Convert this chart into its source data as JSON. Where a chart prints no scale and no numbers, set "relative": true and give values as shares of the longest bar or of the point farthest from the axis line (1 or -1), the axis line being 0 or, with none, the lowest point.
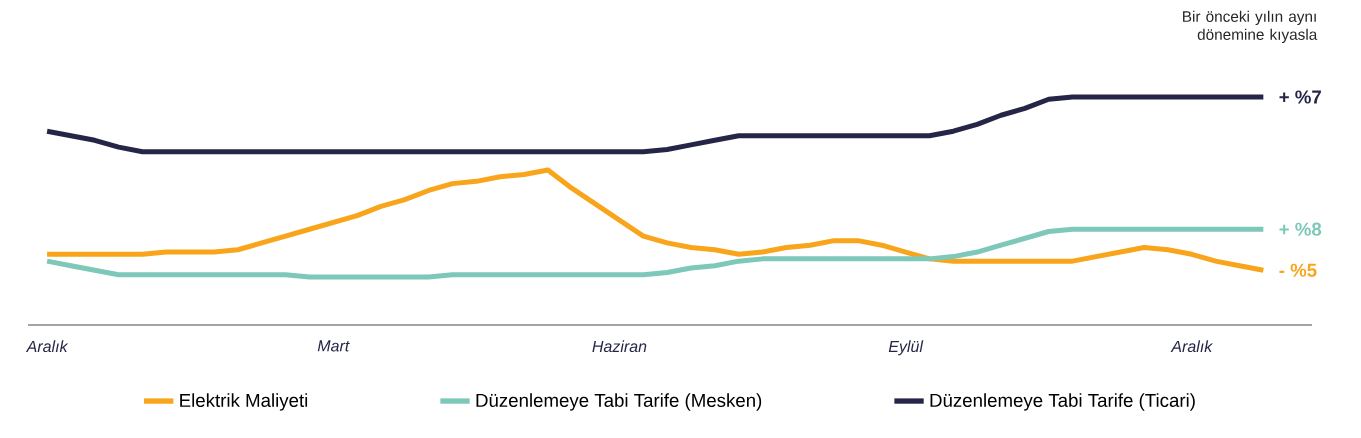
{
  "chart_data": {
    "type": "line",
    "title": "Bir önceki yılın aynı dönemine kıyasla",
    "relative": true,
    "legend": "bottom",
    "categories": [
      "Aralık",
      null,
      null,
      null,
      null,
      null,
      null,
      null,
      null,
      null,
      null,
      null,
      "Mart",
      null,
      null,
      null,
      null,
      null,
      null,
      null,
      null,
      null,
      null,
      null,
      "Haziran",
      null,
      null,
      null,
      null,
      null,
      null,
      null,
      null,
      null,
      null,
      null,
      "Eylül",
      null,
      null,
      null,
      null,
      null,
      null,
      null,
      null,
      null,
      null,
      null,
      "Aralık",
      null,
      null,
      null
    ],
    "series": [
      {
        "name": "Elektrik Maliyeti",
        "color": "#f9a51b",
        "values": [
          0.31,
          0.31,
          0.31,
          0.31,
          0.31,
          0.32,
          0.32,
          0.32,
          0.33,
          0.36,
          0.39,
          0.42,
          0.45,
          0.48,
          0.52,
          0.55,
          0.59,
          0.62,
          0.63,
          0.65,
          0.66,
          0.68,
          0.6,
          0.53,
          0.46,
          0.39,
          0.36,
          0.34,
          0.33,
          0.31,
          0.32,
          0.34,
          0.35,
          0.37,
          0.37,
          0.35,
          0.32,
          0.29,
          0.28,
          0.28,
          0.28,
          0.28,
          0.28,
          0.28,
          0.3,
          0.32,
          0.34,
          0.33,
          0.31,
          0.28,
          0.26,
          0.24
        ]
      },
      {
        "name": "Düzenlemeye Tabi Tarife (Mesken)",
        "color": "#7dc8b8",
        "values": [
          0.28,
          0.26,
          0.24,
          0.22,
          0.22,
          0.22,
          0.22,
          0.22,
          0.22,
          0.22,
          0.22,
          0.21,
          0.21,
          0.21,
          0.21,
          0.21,
          0.21,
          0.22,
          0.22,
          0.22,
          0.22,
          0.22,
          0.22,
          0.22,
          0.22,
          0.22,
          0.23,
          0.25,
          0.26,
          0.28,
          0.29,
          0.29,
          0.29,
          0.29,
          0.29,
          0.29,
          0.29,
          0.29,
          0.3,
          0.32,
          0.35,
          0.38,
          0.41,
          0.42,
          0.42,
          0.42,
          0.42,
          0.42,
          0.42,
          0.42,
          0.42,
          0.42
        ]
      },
      {
        "name": "Düzenlemeye Tabi Tarife (Ticari)",
        "color": "#252647",
        "values": [
          0.85,
          0.83,
          0.81,
          0.78,
          0.76,
          0.76,
          0.76,
          0.76,
          0.76,
          0.76,
          0.76,
          0.76,
          0.76,
          0.76,
          0.76,
          0.76,
          0.76,
          0.76,
          0.76,
          0.76,
          0.76,
          0.76,
          0.76,
          0.76,
          0.76,
          0.76,
          0.77,
          0.79,
          0.81,
          0.83,
          0.83,
          0.83,
          0.83,
          0.83,
          0.83,
          0.83,
          0.83,
          0.83,
          0.85,
          0.88,
          0.92,
          0.95,
          0.99,
          1.0,
          1.0,
          1.0,
          1.0,
          1.0,
          1.0,
          1.0,
          1.0,
          1.0
        ]
      }
    ],
    "annotations": [
      "- %5",
      "+ %8",
      "+ %7"
    ]
  }
}
